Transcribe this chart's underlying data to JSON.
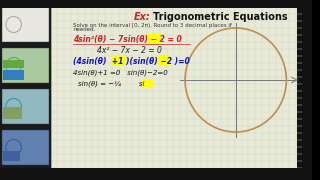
{
  "title_ex": "Ex:",
  "title_main": "Trigonometric Equations",
  "subtitle": "Solve on the interval [0, 2π). Round to 3 decimal places if",
  "subtitle2": "needed.",
  "line1": "4sin²(θ) − 7sin(θ) − 2 = 0",
  "line2": "4x² − 7x − 2 = 0",
  "line3_pre": "(4sin(θ)  ",
  "line3_h1": "+1",
  "line3_mid": " )(sin(θ) ",
  "line3_h2": "−2",
  "line3_post": ")=0",
  "line4": "4sin(θ)+1 =0   sin(θ)−2=0",
  "line5_pre": "  sin(θ) = −¼      ",
  "line5_h3": "si",
  "bg_color": "#e8ead8",
  "grid_color": "#d0d4bc",
  "title_color_ex": "#cc2222",
  "title_color_main": "#111111",
  "text_color": "#111111",
  "line1_color": "#cc2222",
  "line2_color": "#222222",
  "line3_color": "#1111cc",
  "line4_color": "#111111",
  "line5_color": "#111111",
  "highlight_color": "#ffff00",
  "circle_color": "#b89050",
  "axis_color": "#777777",
  "left_panel_bg": "#222222",
  "right_bg": "#111111"
}
